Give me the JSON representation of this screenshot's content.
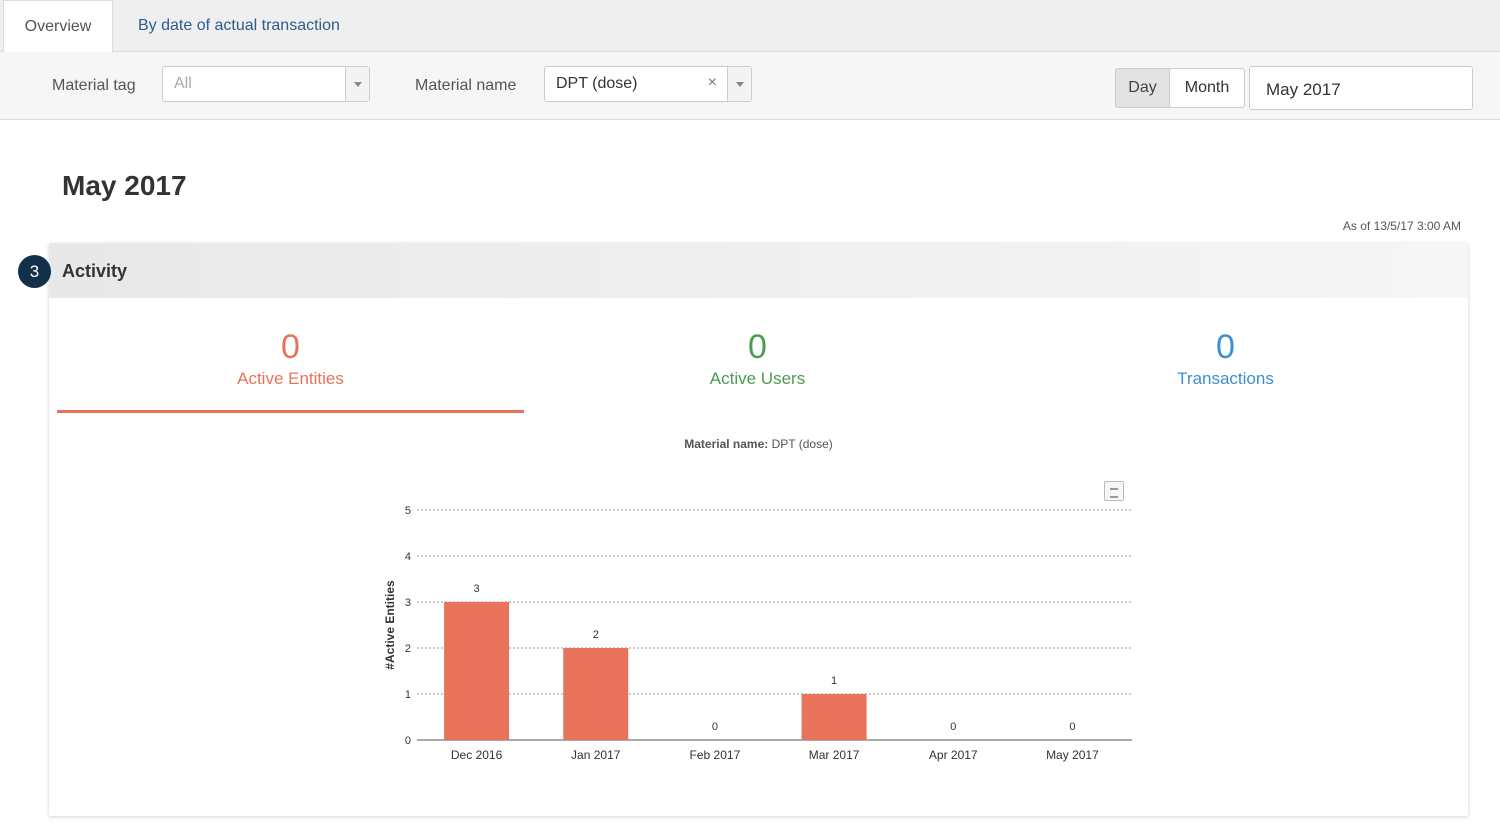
{
  "tabs": [
    {
      "label": "Overview"
    },
    {
      "label": "By date of actual transaction"
    }
  ],
  "filters": {
    "material_tag_label": "Material tag",
    "material_tag_value": "All",
    "material_name_label": "Material name",
    "material_name_value": "DPT (dose)",
    "clear_glyph": "×",
    "day_label": "Day",
    "month_label": "Month",
    "date_value": "May 2017"
  },
  "page": {
    "title": "May 2017",
    "as_of": "As of 13/5/17 3:00 AM"
  },
  "activity": {
    "badge": "3",
    "title": "Activity",
    "stats": [
      {
        "value": "0",
        "label": "Active Entities",
        "color": "#e8735a"
      },
      {
        "value": "0",
        "label": "Active Users",
        "color": "#4d9b52"
      },
      {
        "value": "0",
        "label": "Transactions",
        "color": "#3e8fd0"
      }
    ],
    "chart_caption_key": "Material name:",
    "chart_caption_value": "DPT (dose)"
  },
  "chart_data": {
    "type": "bar",
    "categories": [
      "Dec 2016",
      "Jan 2017",
      "Feb 2017",
      "Mar 2017",
      "Apr 2017",
      "May 2017"
    ],
    "values": [
      3,
      2,
      0,
      1,
      0,
      0
    ],
    "ylabel": "#Active Entities",
    "ylim": [
      0,
      5
    ],
    "yticks": [
      0,
      1,
      2,
      3,
      4,
      5
    ],
    "grid": true,
    "bar_color": "#e8735a"
  }
}
